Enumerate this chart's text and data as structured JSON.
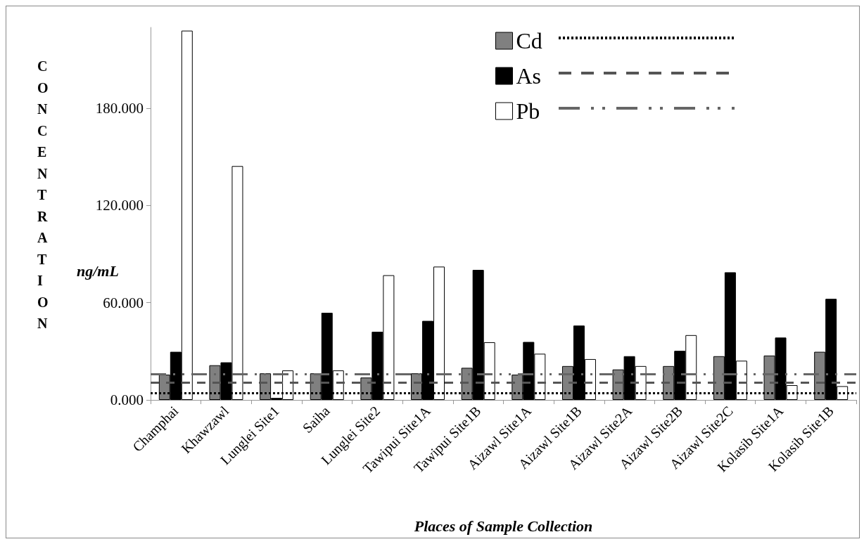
{
  "chart_data": {
    "type": "bar",
    "xlabel": "Places of Sample Collection",
    "ylabel": "CONCENTRATION",
    "annotations": [
      "ng/mL"
    ],
    "categories": [
      "Champhai",
      "Khawzawl",
      "Lunglei Site1",
      "Saiha",
      "Lunglei Site2",
      "Tawipui Site1A",
      "Tawipui Site1B",
      "Aizawl Site1A",
      "Aizawl Site1B",
      "Aizawl Site2A",
      "Aizawl Site2B",
      "Aizawl Site2C",
      "Kolasib Site1A",
      "Kolasib Site1B"
    ],
    "series": [
      {
        "name": "Cd",
        "color": "#808080",
        "values": [
          15.6,
          21.4,
          16.4,
          16.4,
          13.8,
          16.4,
          19.8,
          15.6,
          20.9,
          18.8,
          20.9,
          27,
          27.4,
          29.7
        ]
      },
      {
        "name": "As",
        "color": "#000000",
        "values": [
          29.7,
          23.2,
          1.2,
          53.8,
          42.1,
          48.8,
          80.3,
          35.8,
          45.9,
          27,
          30.3,
          78.8,
          38.5,
          62.4
        ]
      },
      {
        "name": "Pb",
        "color": "#ffffff",
        "values": [
          228,
          144.4,
          18.2,
          18.2,
          77,
          82.3,
          35.6,
          28.5,
          25.2,
          20.9,
          40,
          24.2,
          9.1,
          8.5
        ]
      }
    ],
    "ref_lines": [
      {
        "axis": "y",
        "value": 4.2,
        "color": "#000000",
        "line_style": "dotted"
      },
      {
        "axis": "y",
        "value": 10.8,
        "color": "#555555",
        "line_style": "dashed"
      },
      {
        "axis": "y",
        "value": 15.9,
        "color": "#666666",
        "line_style": "dashdot"
      }
    ],
    "ylim": [
      0,
      230
    ],
    "yticks": [
      {
        "value": 0,
        "label": "0.000"
      },
      {
        "value": 60,
        "label": "60.000"
      },
      {
        "value": 120,
        "label": "120.000"
      },
      {
        "value": 180,
        "label": "180.000"
      }
    ],
    "grid": false,
    "legend": "top right"
  }
}
